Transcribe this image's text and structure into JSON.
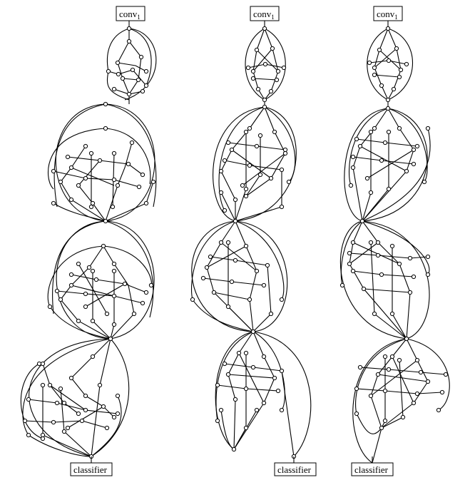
{
  "columns": [
    {
      "top_label": "conv",
      "top_label_sub": "1",
      "bottom_label": "classifier",
      "stages": 4
    },
    {
      "top_label": "conv",
      "top_label_sub": "1",
      "bottom_label": "classifier",
      "stages": 4
    },
    {
      "top_label": "conv",
      "top_label_sub": "1",
      "bottom_label": "classifier",
      "stages": 4
    }
  ]
}
